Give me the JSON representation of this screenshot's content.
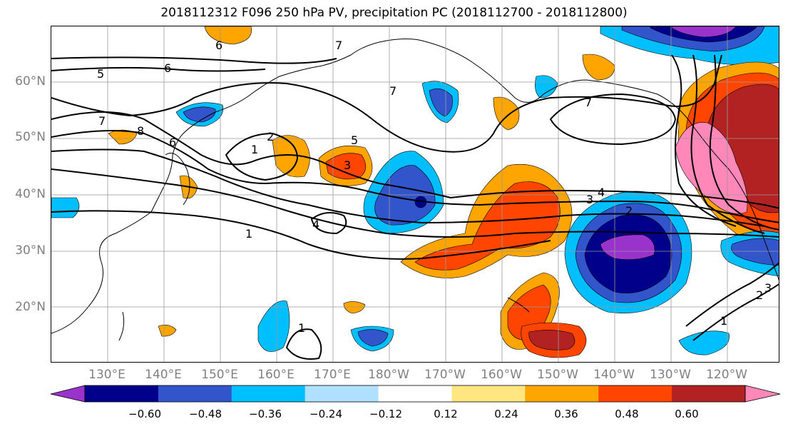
{
  "title": "2018112312 F096 250 hPa PV, precipitation PC (2018112700 - 2018112800)",
  "latitude_labels": [
    "60°N",
    "50°N",
    "40°N",
    "30°N",
    "20°N"
  ],
  "longitude_labels": [
    "130°E",
    "140°E",
    "150°E",
    "160°E",
    "170°E",
    "180°W",
    "170°W",
    "160°W",
    "150°W",
    "140°W",
    "130°W",
    "120°W"
  ],
  "contour_labels": [
    "6",
    "5",
    "6",
    "7",
    "7",
    "7",
    "8",
    "6",
    "5",
    "1",
    "2",
    "3",
    "4",
    "7",
    "3",
    "2",
    "4",
    "1",
    "1",
    "1",
    "2",
    "3"
  ],
  "colorbar": {
    "ticks": [
      "−0.60",
      "−0.48",
      "−0.36",
      "−0.24",
      "−0.12",
      "0.12",
      "0.24",
      "0.36",
      "0.48",
      "0.60"
    ],
    "colors": [
      "#9933cc",
      "#00008b",
      "#3355cc",
      "#00bfff",
      "#b0e0ff",
      "#ffffff",
      "#ffe680",
      "#ffa500",
      "#ff4500",
      "#b22222",
      "#ff88b8"
    ]
  },
  "fill_colors": {
    "neg_strong": "#00008b",
    "neg_mid": "#3355cc",
    "neg_weak": "#00bfff",
    "neg_faint": "#b0e0ff",
    "pos_faint": "#ffe680",
    "pos_weak": "#ffa500",
    "pos_mid": "#ff4500",
    "pos_strong": "#b22222",
    "pos_max": "#ff88b8",
    "neg_max": "#9933cc"
  }
}
